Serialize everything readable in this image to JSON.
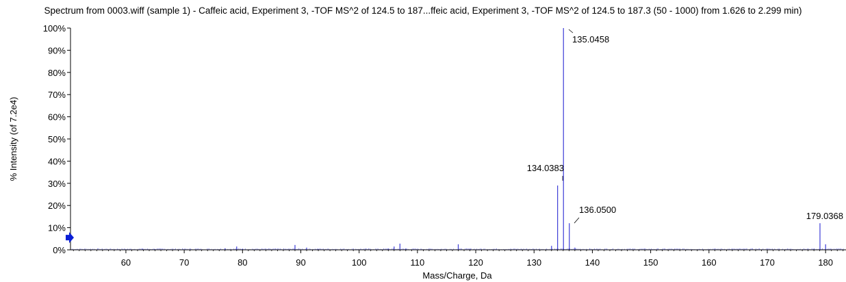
{
  "chart_data": {
    "type": "bar",
    "title": "Spectrum from 0003.wiff (sample 1) - Caffeic acid, Experiment 3, -TOF MS^2 of 124.5 to 187...ffeic acid, Experiment 3, -TOF MS^2 of 124.5 to 187.3 (50 - 1000) from 1.626 to 2.299 min)",
    "xlabel": "Mass/Charge, Da",
    "ylabel": "% Intensity (of 7.2e4)",
    "xlim": [
      50.5,
      183.5
    ],
    "ylim": [
      0,
      100
    ],
    "x_ticks": [
      60,
      70,
      80,
      90,
      100,
      110,
      120,
      130,
      140,
      150,
      160,
      170,
      180
    ],
    "y_ticks": [
      0,
      10,
      20,
      30,
      40,
      50,
      60,
      70,
      80,
      90,
      100
    ],
    "y_tick_labels": [
      "0%",
      "10%",
      "20%",
      "30%",
      "40%",
      "50%",
      "60%",
      "70%",
      "80%",
      "90%",
      "100%"
    ],
    "grid": false,
    "line_color": "#3b3bd6",
    "series": [
      {
        "values": [
          {
            "x": 62.9,
            "y": 0.5
          },
          {
            "x": 64.9,
            "y": 0.4
          },
          {
            "x": 77.0,
            "y": 0.7
          },
          {
            "x": 79.0,
            "y": 1.5
          },
          {
            "x": 80.0,
            "y": 0.5
          },
          {
            "x": 89.0,
            "y": 2.2
          },
          {
            "x": 91.0,
            "y": 1.0
          },
          {
            "x": 93.0,
            "y": 0.4
          },
          {
            "x": 105.0,
            "y": 0.6
          },
          {
            "x": 106.0,
            "y": 1.5
          },
          {
            "x": 107.0,
            "y": 2.8
          },
          {
            "x": 108.0,
            "y": 0.6
          },
          {
            "x": 117.0,
            "y": 2.5
          },
          {
            "x": 119.0,
            "y": 0.5
          },
          {
            "x": 133.0,
            "y": 1.8
          },
          {
            "x": 134.0383,
            "y": 29.0
          },
          {
            "x": 135.0458,
            "y": 100.0
          },
          {
            "x": 136.05,
            "y": 12.0
          },
          {
            "x": 137.0,
            "y": 1.0
          },
          {
            "x": 178.0,
            "y": 0.5
          },
          {
            "x": 179.0368,
            "y": 12.0
          },
          {
            "x": 180.0,
            "y": 2.5
          }
        ]
      }
    ],
    "annotations": [
      {
        "text": "135.0458",
        "x": 135.0458,
        "y": 100.0
      },
      {
        "text": "134.0383",
        "x": 134.0383,
        "y": 29.0
      },
      {
        "text": "136.0500",
        "x": 136.05,
        "y": 12.0
      },
      {
        "text": "179.0368",
        "x": 179.0368,
        "y": 12.0
      }
    ],
    "threshold_marker": {
      "y": 5.5,
      "color": "#0a1fd6"
    }
  }
}
